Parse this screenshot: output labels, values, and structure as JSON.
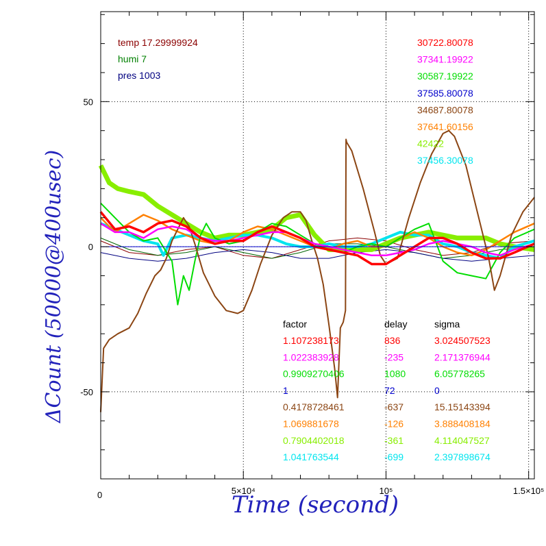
{
  "chart_data": {
    "type": "line",
    "title": "",
    "xlabel": "Time (second)",
    "ylabel": "ΔCount (50000@400usec)",
    "xlim": [
      0,
      152000
    ],
    "ylim": [
      -80,
      81
    ],
    "grid": true,
    "x_ticks": [
      {
        "value": 0,
        "label": "0"
      },
      {
        "value": 50000,
        "label": "5×10⁴"
      },
      {
        "value": 100000,
        "label": "10⁵"
      },
      {
        "value": 150000,
        "label": "1.5×10⁵"
      }
    ],
    "y_ticks": [
      {
        "value": -50,
        "label": "-50"
      },
      {
        "value": 0,
        "label": "0"
      },
      {
        "value": 50,
        "label": "50"
      }
    ],
    "env_labels": [
      {
        "text": "temp 17.29999924",
        "color": "#8b0000"
      },
      {
        "text": "humi 7",
        "color": "#008000"
      },
      {
        "text": "pres 1003",
        "color": "#000080"
      }
    ],
    "stats_header": {
      "factor": "factor",
      "delay": "delay",
      "sigma": "sigma"
    },
    "series": [
      {
        "name": "30722.80078",
        "color": "#ff0000",
        "factor": "1.107238173",
        "delay": "836",
        "sigma": "3.024507523",
        "x": [
          0,
          5000,
          10000,
          15000,
          20000,
          25000,
          30000,
          35000,
          40000,
          45000,
          50000,
          55000,
          60000,
          65000,
          70000,
          75000,
          80000,
          85000,
          90000,
          95000,
          100000,
          105000,
          110000,
          115000,
          120000,
          125000,
          130000,
          135000,
          140000,
          145000,
          152000
        ],
        "y": [
          12,
          6,
          7,
          5,
          8,
          9,
          7,
          3,
          1,
          2,
          2,
          5,
          7,
          5,
          3,
          0,
          -1,
          -2,
          -3,
          -6,
          -6,
          -3,
          0,
          3,
          3,
          1,
          -2,
          -4,
          -4,
          -2,
          1
        ]
      },
      {
        "name": "37341.19922",
        "color": "#ff00ff",
        "factor": "1.022383928",
        "delay": "-235",
        "sigma": "2.171376944",
        "x": [
          0,
          5000,
          10000,
          15000,
          20000,
          25000,
          30000,
          35000,
          40000,
          45000,
          50000,
          55000,
          60000,
          65000,
          70000,
          75000,
          80000,
          85000,
          90000,
          95000,
          100000,
          105000,
          110000,
          115000,
          120000,
          125000,
          130000,
          135000,
          140000,
          145000,
          152000
        ],
        "y": [
          8,
          5,
          5,
          3,
          6,
          7,
          6,
          3,
          2,
          2,
          3,
          4,
          5,
          5,
          3,
          1,
          0,
          -1,
          -2,
          -3,
          -3,
          -2,
          -1,
          1,
          2,
          1,
          0,
          -2,
          -3,
          -1,
          1
        ]
      },
      {
        "name": "30587.19922",
        "color": "#00dd00",
        "factor": "0.9909270406",
        "delay": "1080",
        "sigma": "6.05778265",
        "x": [
          0,
          5000,
          10000,
          15000,
          20000,
          25000,
          27000,
          29000,
          31000,
          33000,
          35000,
          37000,
          40000,
          45000,
          50000,
          55000,
          60000,
          65000,
          70000,
          75000,
          80000,
          85000,
          90000,
          95000,
          100000,
          105000,
          110000,
          115000,
          120000,
          125000,
          130000,
          135000,
          140000,
          145000,
          152000
        ],
        "y": [
          15,
          10,
          5,
          2,
          3,
          -5,
          -20,
          -10,
          -15,
          -5,
          4,
          8,
          3,
          1,
          2,
          5,
          8,
          7,
          4,
          1,
          -1,
          -2,
          0,
          1,
          0,
          3,
          6,
          8,
          -5,
          -9,
          -10,
          -11,
          -2,
          3,
          6
        ]
      },
      {
        "name": "37585.80078",
        "color": "#0000cc",
        "factor": "1",
        "delay": "72",
        "sigma": "0",
        "x": [
          0,
          20000,
          40000,
          60000,
          80000,
          100000,
          120000,
          140000,
          152000
        ],
        "y": [
          0,
          0,
          0,
          0,
          0,
          0,
          0,
          0,
          0
        ]
      },
      {
        "name": "34687.80078",
        "color": "#8b4513",
        "factor": "0.4178728461",
        "delay": "-637",
        "sigma": "15.15143394",
        "x": [
          0,
          1000,
          3000,
          6000,
          10000,
          13000,
          16000,
          19000,
          21000,
          23000,
          25000,
          27000,
          29000,
          31000,
          33000,
          36000,
          40000,
          44000,
          48000,
          50000,
          53000,
          56000,
          60000,
          64000,
          67000,
          70000,
          72000,
          74000,
          76000,
          78000,
          80000,
          82000,
          83000,
          84000,
          85000,
          85800,
          86000,
          86200,
          88000,
          92000,
          96000,
          98000,
          100000,
          104000,
          108000,
          112000,
          116000,
          120000,
          122000,
          124000,
          128000,
          132000,
          136000,
          138000,
          140000,
          144000,
          148000,
          152000
        ],
        "y": [
          -57,
          -35,
          -32,
          -30,
          -28,
          -23,
          -16,
          -10,
          -8,
          -4,
          2,
          6,
          10,
          7,
          1,
          -9,
          -17,
          -22,
          -23,
          -22,
          -15,
          -6,
          4,
          10,
          12,
          12,
          9,
          2,
          -4,
          -13,
          -27,
          -42,
          -52,
          -28,
          -26,
          -22,
          37,
          36,
          33,
          20,
          5,
          -3,
          -6,
          -4,
          10,
          22,
          32,
          39,
          40,
          38,
          28,
          12,
          -4,
          -15,
          -10,
          4,
          12,
          17
        ]
      },
      {
        "name": "37641.60156",
        "color": "#ff8000",
        "factor": "1.069881678",
        "delay": "-126",
        "sigma": "3.888408184",
        "x": [
          0,
          5000,
          10000,
          15000,
          20000,
          25000,
          30000,
          35000,
          40000,
          45000,
          50000,
          55000,
          60000,
          65000,
          70000,
          75000,
          80000,
          85000,
          90000,
          95000,
          100000,
          105000,
          110000,
          115000,
          120000,
          125000,
          130000,
          135000,
          140000,
          145000,
          152000
        ],
        "y": [
          10,
          5,
          8,
          11,
          9,
          6,
          4,
          2,
          1,
          2,
          5,
          7,
          6,
          4,
          2,
          0,
          -1,
          1,
          2,
          0,
          0,
          3,
          5,
          3,
          0,
          -2,
          -3,
          -1,
          2,
          5,
          8
        ]
      },
      {
        "name": "42422",
        "color": "#88ee00",
        "factor": "0.7904402018",
        "delay": "-361",
        "sigma": "4.114047527",
        "x": [
          0,
          3000,
          6000,
          10000,
          15000,
          20000,
          25000,
          30000,
          35000,
          40000,
          45000,
          50000,
          55000,
          60000,
          65000,
          70000,
          75000,
          80000,
          85000,
          90000,
          95000,
          100000,
          105000,
          110000,
          115000,
          120000,
          125000,
          130000,
          135000,
          140000,
          145000,
          152000
        ],
        "y": [
          28,
          22,
          20,
          19,
          18,
          14,
          11,
          8,
          5,
          3,
          4,
          4,
          5,
          6,
          10,
          11,
          4,
          -1,
          -1,
          -1,
          -1,
          1,
          3,
          4,
          5,
          4,
          3,
          3,
          3,
          1,
          0,
          -1
        ]
      },
      {
        "name": "37456.30078",
        "color": "#00e5ee",
        "factor": "1.041763544",
        "delay": "-699",
        "sigma": "2.397898674",
        "x": [
          0,
          5000,
          10000,
          15000,
          20000,
          22000,
          25000,
          30000,
          35000,
          40000,
          45000,
          50000,
          55000,
          60000,
          65000,
          70000,
          75000,
          80000,
          85000,
          90000,
          95000,
          100000,
          105000,
          110000,
          115000,
          120000,
          125000,
          130000,
          135000,
          140000,
          145000,
          152000
        ],
        "y": [
          8,
          6,
          4,
          2,
          1,
          -3,
          3,
          4,
          3,
          2,
          3,
          4,
          4,
          3,
          1,
          0,
          0,
          1,
          0,
          0,
          1,
          3,
          5,
          4,
          4,
          1,
          0,
          -2,
          -3,
          -4,
          0,
          2
        ]
      }
    ],
    "extra_series": [
      {
        "color": "#8b0000",
        "x": [
          0,
          10000,
          20000,
          30000,
          40000,
          50000,
          60000,
          70000,
          80000,
          90000,
          100000,
          110000,
          120000,
          130000,
          140000,
          152000
        ],
        "y": [
          2,
          -2,
          -3,
          -1,
          0,
          -3,
          -4,
          -1,
          2,
          3,
          2,
          -1,
          -3,
          -2,
          1,
          2
        ]
      },
      {
        "color": "#006400",
        "x": [
          0,
          10000,
          20000,
          30000,
          40000,
          50000,
          60000,
          70000,
          80000,
          90000,
          100000,
          110000,
          120000,
          130000,
          140000,
          152000
        ],
        "y": [
          3,
          -1,
          -3,
          -2,
          0,
          -2,
          -4,
          -2,
          1,
          1,
          0,
          -2,
          -4,
          -3,
          -1,
          0
        ]
      },
      {
        "color": "#000080",
        "x": [
          0,
          10000,
          20000,
          30000,
          40000,
          50000,
          60000,
          70000,
          80000,
          90000,
          100000,
          110000,
          120000,
          130000,
          140000,
          152000
        ],
        "y": [
          -2,
          -4,
          -5,
          -4,
          -2,
          -1,
          -2,
          -4,
          -4,
          -2,
          -1,
          -2,
          -4,
          -5,
          -4,
          -3
        ]
      }
    ]
  }
}
